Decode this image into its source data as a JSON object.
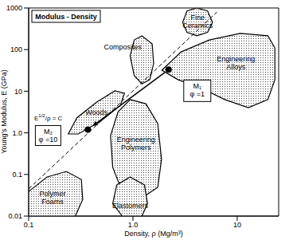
{
  "chart_data": {
    "type": "scatter",
    "title": "Modulus - Density",
    "x_label": "Density, ρ (Mg/m³)",
    "y_label": "Young's Modulus, E (GPa)",
    "log": true,
    "xlim": [
      0.1,
      25
    ],
    "ylim": [
      0.01,
      1000
    ],
    "xticks": [
      0.1,
      {
        "value": 1,
        "label": "1.0"
      },
      10
    ],
    "yticks": [
      0.01,
      0.1,
      {
        "value": 1,
        "label": "1.0"
      },
      10,
      100,
      1000
    ],
    "regions": [
      {
        "name": "Fine Ceramics",
        "x": [
          3.0,
          3.3,
          4.1,
          5.2,
          5.8,
          5.2,
          4.1,
          3.3
        ],
        "y": [
          450,
          850,
          1000,
          850,
          450,
          260,
          215,
          260
        ]
      },
      {
        "name": "Composites",
        "x": [
          1.22,
          1.53,
          1.58,
          1.45,
          1.22,
          1.03,
          0.94,
          1.03
        ],
        "y": [
          214,
          137,
          46,
          19,
          15,
          23.5,
          71,
          171
        ]
      },
      {
        "name": "Engineering Alloys",
        "x": [
          1.9,
          2.9,
          5.4,
          10.7,
          19.7,
          23,
          23,
          19.7,
          12.8,
          7.6,
          4.5,
          2.7
        ],
        "y": [
          32,
          88,
          170,
          245,
          215,
          110,
          19,
          6.3,
          4,
          6.3,
          12,
          19
        ]
      },
      {
        "name": "Woods",
        "x": [
          0.24,
          0.29,
          0.45,
          0.67,
          0.83,
          0.76,
          0.49,
          0.3
        ],
        "y": [
          0.94,
          2.3,
          5.5,
          10.2,
          8.9,
          4.6,
          1.9,
          0.94
        ]
      },
      {
        "name": "Engineering Polymers",
        "x": [
          0.94,
          1.33,
          1.73,
          1.88,
          1.73,
          1.22,
          0.79,
          0.64,
          0.61,
          0.72
        ],
        "y": [
          6.3,
          5,
          1.67,
          0.23,
          0.049,
          0.0275,
          0.039,
          0.148,
          0.86,
          3.2
        ]
      },
      {
        "name": "Elastomers",
        "x": [
          0.94,
          1.29,
          1.38,
          1.22,
          0.79,
          0.64,
          0.7
        ],
        "y": [
          0.087,
          0.056,
          0.02,
          0.01,
          0.01,
          0.02,
          0.056
        ]
      },
      {
        "name": "Polymer Foams",
        "x": [
          0.1,
          0.15,
          0.23,
          0.32,
          0.33,
          0.28,
          0.1
        ],
        "y": [
          0.039,
          0.087,
          0.118,
          0.076,
          0.025,
          0.01,
          0.01
        ]
      }
    ],
    "guide_line": {
      "label": {
        "text": "E",
        "superscript": "1/2",
        "suffix": "/ρ = C"
      },
      "line_style": "dashed",
      "x": [
        0.1,
        6.4
      ],
      "y": [
        0.045,
        800
      ]
    },
    "points": [
      {
        "name": "M₁",
        "label": "φ =1",
        "x": 2.2,
        "y": 33
      },
      {
        "name": "M₂",
        "label": "φ =10",
        "x": 0.37,
        "y": 1.2
      }
    ]
  }
}
